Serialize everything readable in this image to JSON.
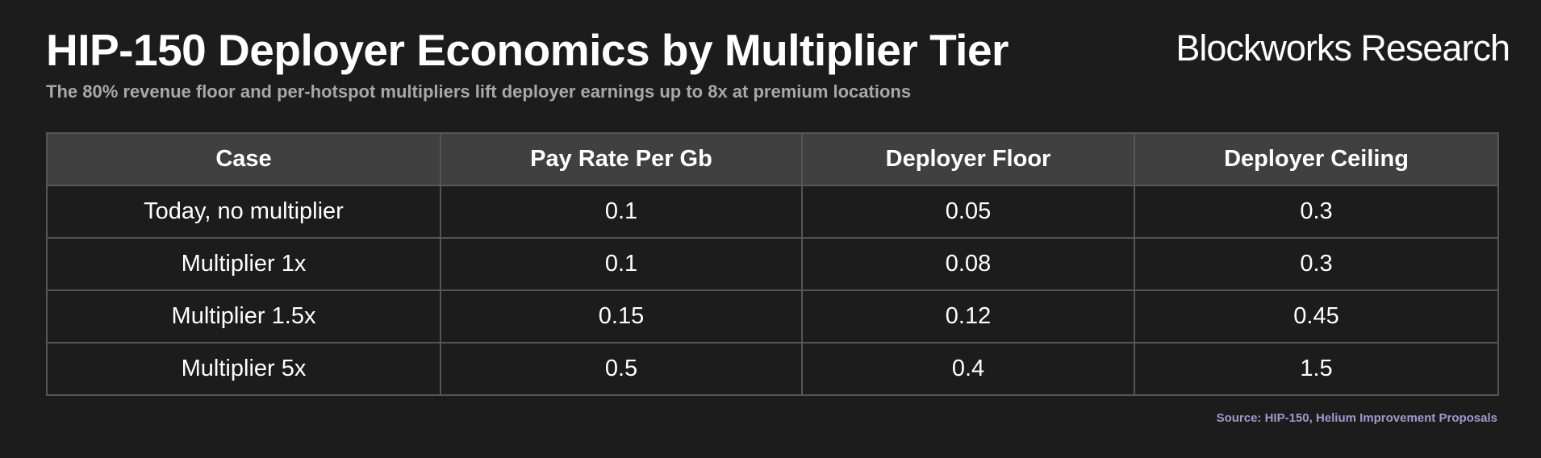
{
  "header": {
    "title": "HIP-150 Deployer Economics by Multiplier Tier",
    "subtitle": "The 80% revenue floor and per-hotspot multipliers lift deployer earnings up to 8x at premium locations",
    "brand": "Blockworks Research"
  },
  "footer": {
    "source": "Source: HIP-150, Helium Improvement Proposals"
  },
  "colors": {
    "background": "#1c1c1c",
    "header_row": "#404040",
    "border": "#555555",
    "source_text": "#9e9acb"
  },
  "chart_data": {
    "type": "table",
    "title": "HIP-150 Deployer Economics by Multiplier Tier",
    "subtitle": "The 80% revenue floor and per-hotspot multipliers lift deployer earnings up to 8x at premium locations",
    "columns": [
      "Case",
      "Pay Rate Per Gb",
      "Deployer Floor",
      "Deployer Ceiling"
    ],
    "rows": [
      [
        "Today, no multiplier",
        "0.1",
        "0.05",
        "0.3"
      ],
      [
        "Multiplier 1x",
        "0.1",
        "0.08",
        "0.3"
      ],
      [
        "Multiplier 1.5x",
        "0.15",
        "0.12",
        "0.45"
      ],
      [
        "Multiplier 5x",
        "0.5",
        "0.4",
        "1.5"
      ]
    ]
  }
}
